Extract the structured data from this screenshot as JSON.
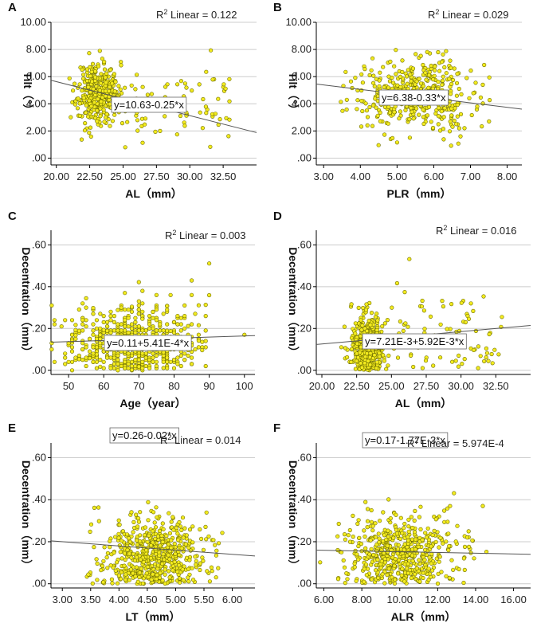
{
  "chart_data": [
    {
      "type": "scatter",
      "panel_label": "A",
      "xlabel": "AL（mm）",
      "ylabel": "Tilt（°）",
      "xlim": [
        19.6,
        35.0
      ],
      "ylim": [
        -0.5,
        10.0
      ],
      "x_ticks": [
        20,
        22.5,
        25,
        27.5,
        30,
        32.5
      ],
      "x_tick_labels": [
        "20.00",
        "22.50",
        "25.00",
        "27.50",
        "30.00",
        "32.50"
      ],
      "y_ticks": [
        0,
        2,
        4,
        6,
        8,
        10
      ],
      "y_tick_labels": [
        ".00",
        "2.00",
        "4.00",
        "6.00",
        "8.00",
        "10.00"
      ],
      "r2_label": "R",
      "r2_sup": "2",
      "r2_text": " Linear = 0.122",
      "equation": "y=10.63-0.25*x",
      "fit": {
        "intercept": 10.63,
        "slope": -0.25
      },
      "cluster": {
        "mx": 23.1,
        "sx": 0.75,
        "my": 4.9,
        "sy": 1.1,
        "n": 300
      },
      "spread": {
        "xmin": 21.6,
        "xmax": 33.0,
        "my": 4.0,
        "sy": 1.4,
        "n": 120
      },
      "seed": 11
    },
    {
      "type": "scatter",
      "panel_label": "B",
      "xlabel": "PLR（mm）",
      "ylabel": "Tilt（°）",
      "xlim": [
        2.8,
        8.4
      ],
      "ylim": [
        -0.5,
        10.0
      ],
      "x_ticks": [
        3,
        4,
        5,
        6,
        7,
        8
      ],
      "x_tick_labels": [
        "3.00",
        "4.00",
        "5.00",
        "6.00",
        "7.00",
        "8.00"
      ],
      "y_ticks": [
        0,
        2,
        4,
        6,
        8,
        10
      ],
      "y_tick_labels": [
        ".00",
        "2.00",
        "4.00",
        "6.00",
        "8.00",
        "10.00"
      ],
      "r2_label": "R",
      "r2_sup": "2",
      "r2_text": " Linear = 0.029",
      "equation": "y=6.38-0.33*x",
      "fit": {
        "intercept": 6.38,
        "slope": -0.33
      },
      "cluster": {
        "mx": 5.55,
        "sx": 0.7,
        "my": 4.6,
        "sy": 1.3,
        "n": 420
      },
      "spread": {
        "xmin": 3.5,
        "xmax": 7.6,
        "my": 4.5,
        "sy": 1.4,
        "n": 40
      },
      "seed": 22
    },
    {
      "type": "scatter",
      "panel_label": "C",
      "xlabel": "Age（year）",
      "ylabel": "Decentration（mm）",
      "xlim": [
        45,
        103
      ],
      "ylim": [
        -0.02,
        0.67
      ],
      "x_ticks": [
        50,
        60,
        70,
        80,
        90,
        100
      ],
      "x_tick_labels": [
        "50",
        "60",
        "70",
        "80",
        "90",
        "100"
      ],
      "y_ticks": [
        0,
        0.2,
        0.4,
        0.6
      ],
      "y_tick_labels": [
        ".00",
        ".20",
        ".40",
        ".60"
      ],
      "r2_label": "R",
      "r2_sup": "2",
      "r2_text": " Linear = 0.003",
      "equation": "y=0.11+5.41E-4*x",
      "fit": {
        "intercept": 0.11,
        "slope": 0.000541
      },
      "cluster": {
        "mx": 68,
        "sx": 9,
        "my": 0.13,
        "sy": 0.09,
        "n": 520,
        "xround": 1,
        "ysnap": 0.01
      },
      "spread": {
        "xmin": 50,
        "xmax": 90,
        "my": 0.15,
        "sy": 0.12,
        "n": 60,
        "xround": 1
      },
      "seed": 33
    },
    {
      "type": "scatter",
      "panel_label": "D",
      "xlabel": "AL（mm）",
      "ylabel": "Decentration（mm）",
      "xlim": [
        19.6,
        35.0
      ],
      "ylim": [
        -0.02,
        0.67
      ],
      "x_ticks": [
        20,
        22.5,
        25,
        27.5,
        30,
        32.5
      ],
      "x_tick_labels": [
        "20.00",
        "22.50",
        "25.00",
        "27.50",
        "30.00",
        "32.50"
      ],
      "y_ticks": [
        0,
        0.2,
        0.4,
        0.6
      ],
      "y_tick_labels": [
        ".00",
        ".20",
        ".40",
        ".60"
      ],
      "r2_label": "R",
      "r2_sup": "2",
      "r2_text": " Linear = 0.016",
      "equation": "y=7.21E-3+5.92E-3*x",
      "fit": {
        "intercept": 0.00721,
        "slope": 0.00592
      },
      "cluster": {
        "mx": 23.2,
        "sx": 0.6,
        "my": 0.11,
        "sy": 0.08,
        "n": 420
      },
      "spread": {
        "xmin": 22.0,
        "xmax": 33.0,
        "my": 0.15,
        "sy": 0.1,
        "n": 120
      },
      "seed": 44
    },
    {
      "type": "scatter",
      "panel_label": "E",
      "xlabel": "LT（mm）",
      "ylabel": "Decentration（mm）",
      "xlim": [
        2.8,
        6.4
      ],
      "ylim": [
        -0.02,
        0.67
      ],
      "x_ticks": [
        3,
        3.5,
        4,
        4.5,
        5,
        5.5,
        6
      ],
      "x_tick_labels": [
        "3.00",
        "3.50",
        "4.00",
        "4.50",
        "5.00",
        "5.50",
        "6.00"
      ],
      "y_ticks": [
        0,
        0.2,
        0.4,
        0.6
      ],
      "y_tick_labels": [
        ".00",
        ".20",
        ".40",
        ".60"
      ],
      "r2_label": "R",
      "r2_sup": "2",
      "r2_text": " Linear = 0.014",
      "equation": "y=0.26-0.02*x",
      "fit": {
        "intercept": 0.26,
        "slope": -0.02
      },
      "cluster": {
        "mx": 4.6,
        "sx": 0.42,
        "my": 0.13,
        "sy": 0.09,
        "n": 520
      },
      "spread": {
        "xmin": 3.4,
        "xmax": 5.8,
        "my": 0.14,
        "sy": 0.11,
        "n": 60
      },
      "seed": 55
    },
    {
      "type": "scatter",
      "panel_label": "F",
      "xlabel": "ALR（mm）",
      "ylabel": "Decentration（mm）",
      "xlim": [
        5.6,
        16.9
      ],
      "ylim": [
        -0.02,
        0.67
      ],
      "x_ticks": [
        6,
        8,
        10,
        12,
        14,
        16
      ],
      "x_tick_labels": [
        "6.00",
        "8.00",
        "10.00",
        "12.00",
        "14.00",
        "16.00"
      ],
      "y_ticks": [
        0,
        0.2,
        0.4,
        0.6
      ],
      "y_tick_labels": [
        ".00",
        ".20",
        ".40",
        ".60"
      ],
      "r2_label": "R",
      "r2_sup": "2",
      "r2_text": " Linear = 5.974E-4",
      "equation": "y=0.17-1.77E-3*x",
      "fit": {
        "intercept": 0.17,
        "slope": -0.00177
      },
      "cluster": {
        "mx": 9.9,
        "sx": 1.3,
        "my": 0.13,
        "sy": 0.09,
        "n": 500
      },
      "spread": {
        "xmin": 7.5,
        "xmax": 14.6,
        "my": 0.15,
        "sy": 0.11,
        "n": 60
      },
      "seed": 66
    }
  ],
  "style": {
    "marker_fill": "#f2ea1e",
    "marker_stroke": "#6b6b00",
    "grid_color": "#cccccc",
    "line_color": "#555555",
    "axis_color": "#000000"
  }
}
